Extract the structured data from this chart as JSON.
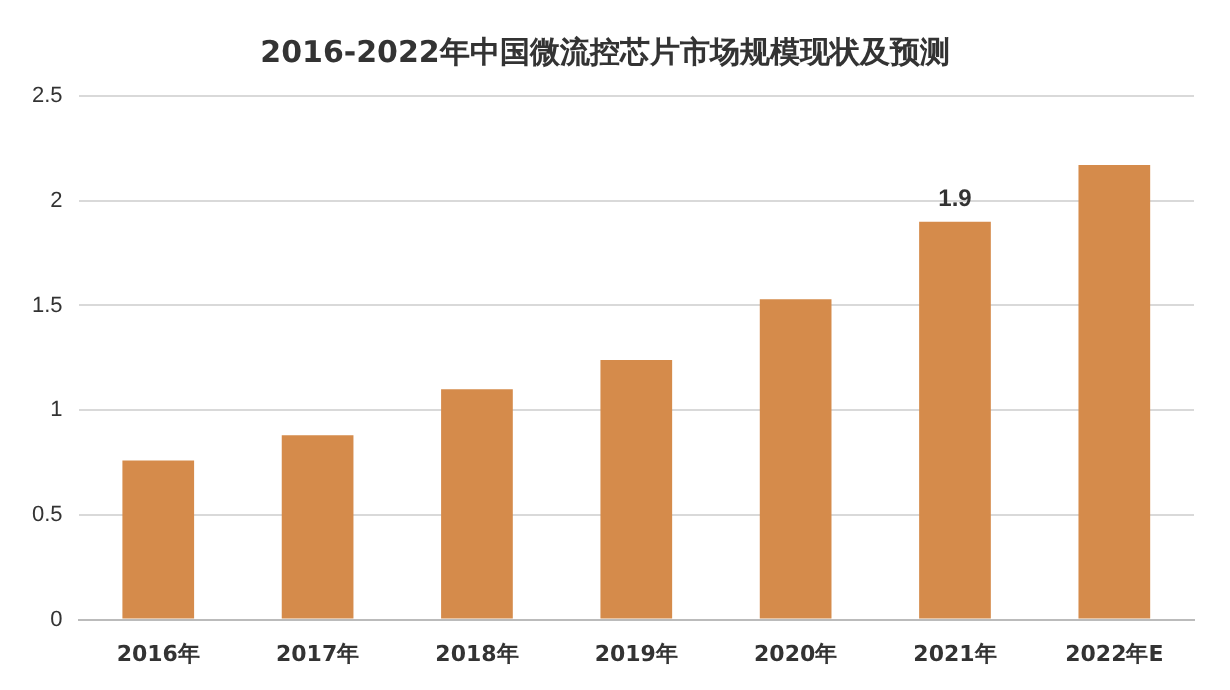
{
  "chart_data": {
    "type": "bar",
    "title": "2016-2022年中国微流控芯片市场规模现状及预测",
    "categories": [
      "2016年",
      "2017年",
      "2018年",
      "2019年",
      "2020年",
      "2021年",
      "2022年E"
    ],
    "values": [
      0.76,
      0.88,
      1.1,
      1.24,
      1.53,
      1.9,
      2.17
    ],
    "value_labels": [
      null,
      null,
      null,
      null,
      null,
      "1.9",
      null
    ],
    "color": "#d58b4b",
    "ylim": [
      0,
      2.5
    ],
    "yticks": [
      0,
      0.5,
      1,
      1.5,
      2,
      2.5
    ],
    "grid": "y",
    "legend": false
  }
}
